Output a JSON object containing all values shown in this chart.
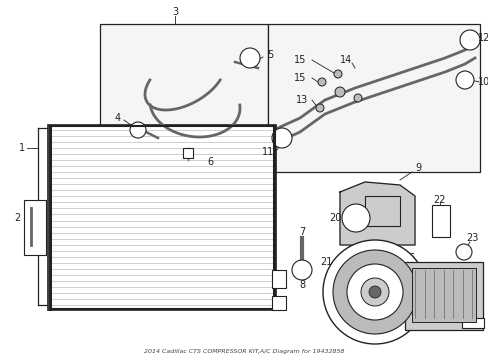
{
  "bg_color": "#ffffff",
  "title": "2014 Cadillac CTS COMPRESSOR KIT,A/C Diagram for 19432858",
  "black": "#222222",
  "gray": "#666666",
  "light_gray": "#bbbbbb",
  "fill_gray": "#cccccc",
  "box_fill": "#f5f5f5"
}
